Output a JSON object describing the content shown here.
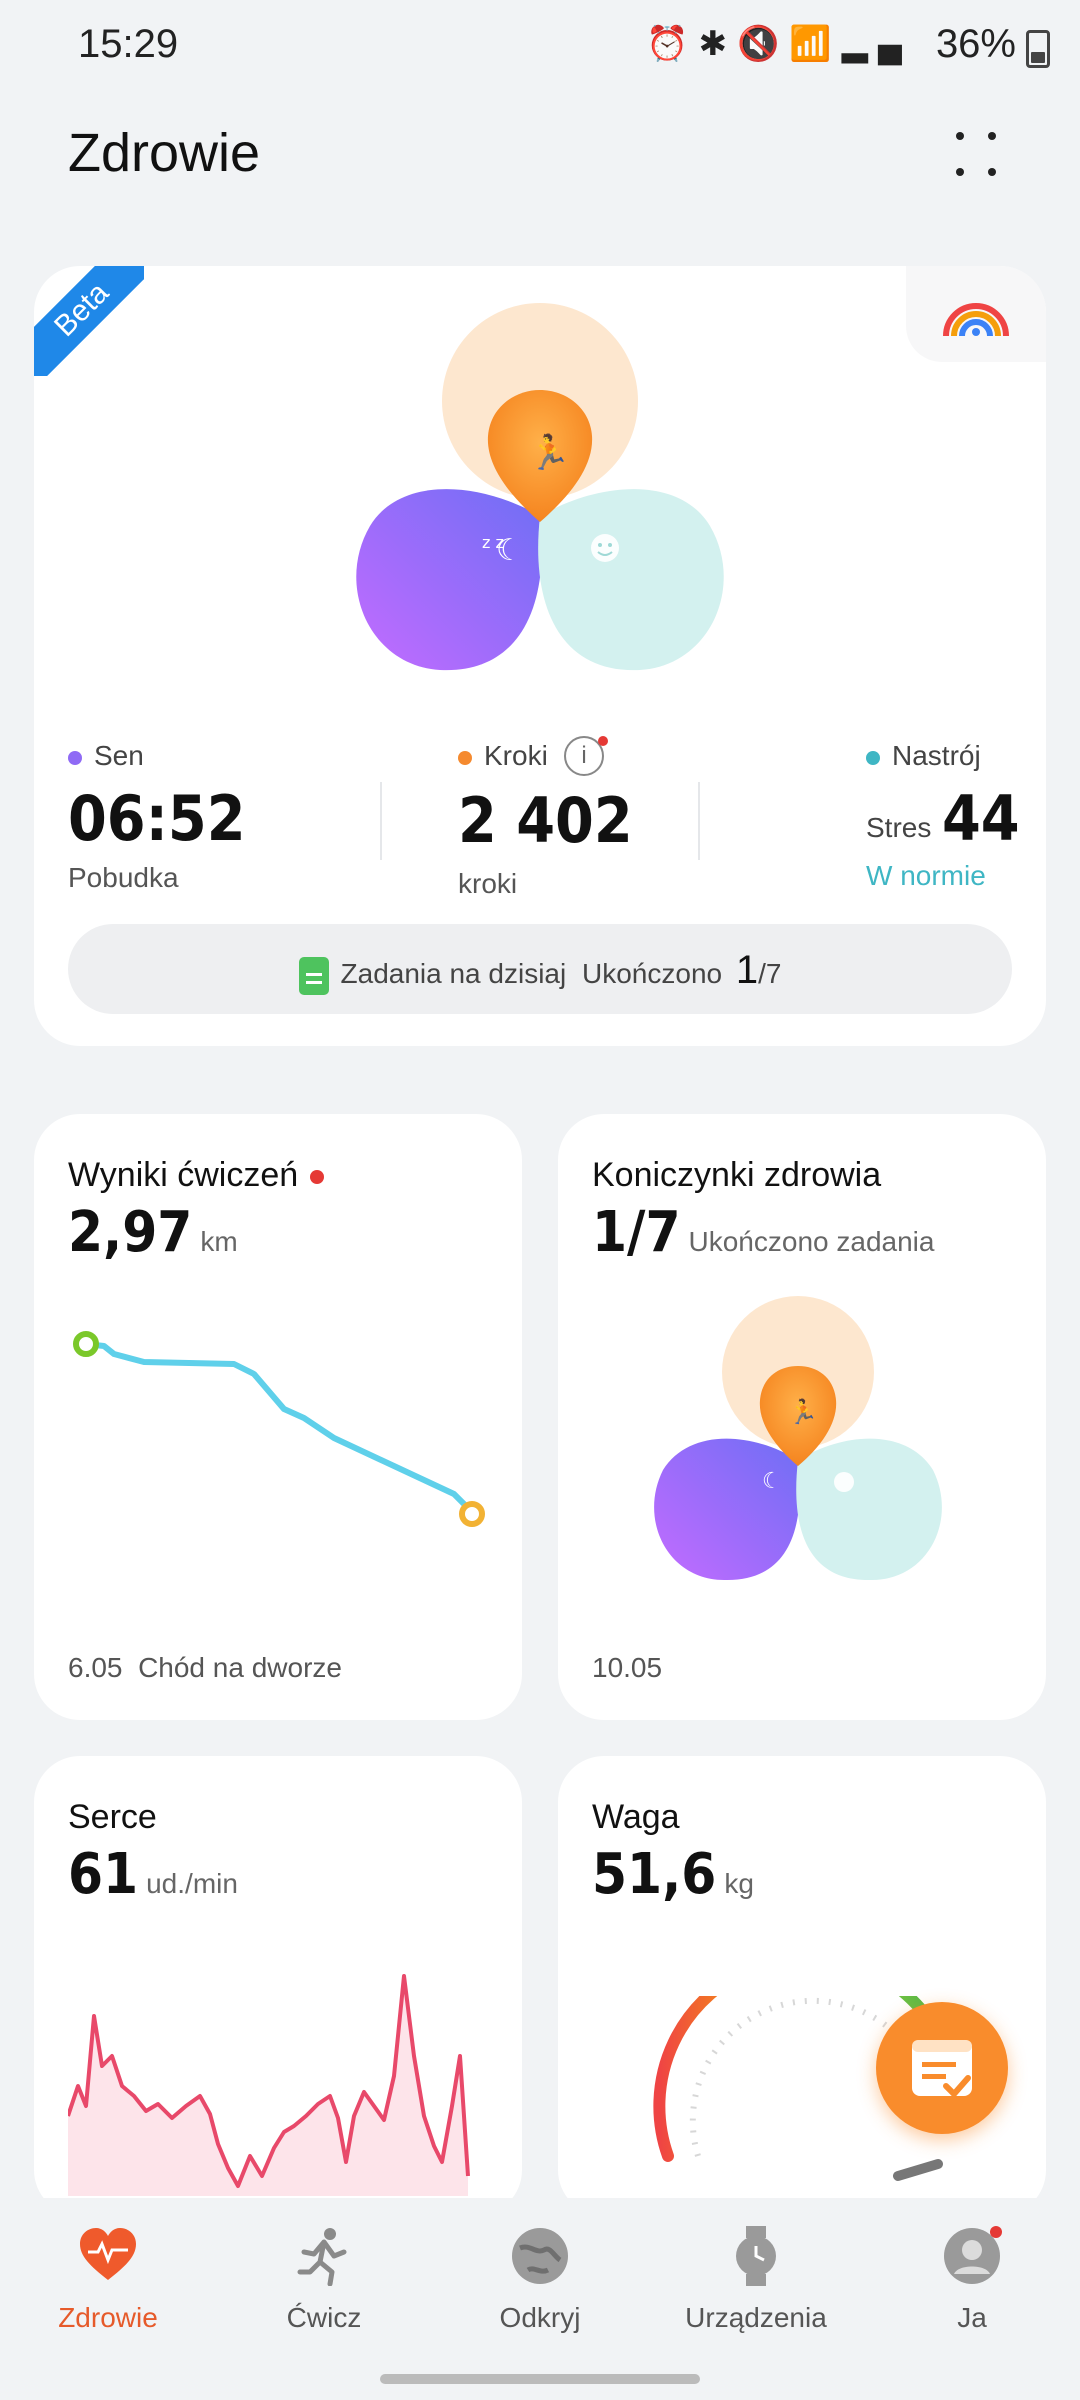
{
  "status_bar": {
    "time": "15:29",
    "battery": "36%",
    "icons": [
      "alarm-icon",
      "bluetooth-icon",
      "mute-icon",
      "wifi-icon",
      "wifi-call-icon",
      "signal-icon"
    ]
  },
  "header": {
    "title": "Zdrowie"
  },
  "summary": {
    "badge": "Beta",
    "sleep": {
      "label": "Sen",
      "value": "06:52",
      "sub": "Pobudka",
      "color": "#8f6af5"
    },
    "steps": {
      "label": "Kroki",
      "value": "2 402",
      "sub": "kroki",
      "color": "#f58a2f"
    },
    "mood": {
      "label": "Nastrój",
      "stress_label": "Stres",
      "value": "44",
      "status": "W normie",
      "color": "#3fb6c4",
      "status_color": "#3fb6c4"
    },
    "tasks": {
      "label": "Zadania na dzisiaj",
      "completed_label": "Ukończono",
      "done": "1",
      "total": "/7"
    }
  },
  "exercise_card": {
    "title": "Wyniki ćwiczeń",
    "value": "2,97",
    "unit": "km",
    "date": "6.05",
    "activity": "Chód na dworze",
    "route_color": "#5fd0ea"
  },
  "clover_card": {
    "title": "Koniczynki zdrowia",
    "value": "1/7",
    "unit": "Ukończono zadania",
    "date": "10.05"
  },
  "heart_card": {
    "title": "Serce",
    "value": "61",
    "unit": "ud./min",
    "line_color": "#e8496a"
  },
  "weight_card": {
    "title": "Waga",
    "value": "51,6",
    "unit": "kg"
  },
  "nav": {
    "items": [
      {
        "label": "Zdrowie",
        "icon": "heart-pulse-icon",
        "active": true
      },
      {
        "label": "Ćwicz",
        "icon": "running-icon",
        "active": false
      },
      {
        "label": "Odkryj",
        "icon": "globe-icon",
        "active": false
      },
      {
        "label": "Urządzenia",
        "icon": "watch-icon",
        "active": false
      },
      {
        "label": "Ja",
        "icon": "profile-icon",
        "active": false
      }
    ],
    "accent": "#e65a2a"
  }
}
